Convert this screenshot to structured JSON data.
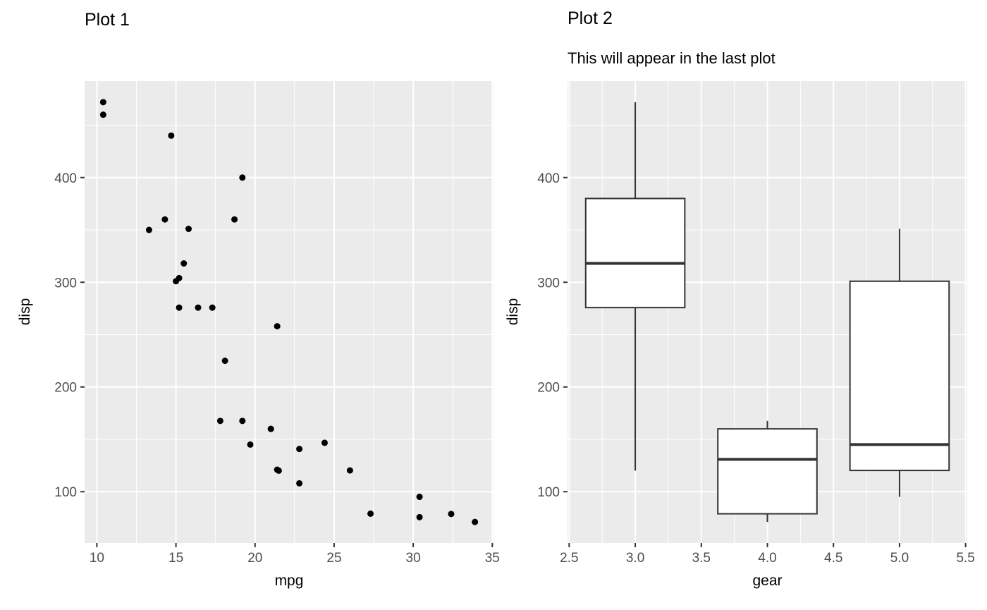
{
  "style": {
    "figure_background": "#FFFFFF",
    "panel_background": "#EBEBEB",
    "grid_color": "#FFFFFF",
    "point_color": "#000000",
    "box_fill": "#FFFFFF",
    "box_stroke": "#333333",
    "tick_color": "#333333",
    "tick_label_color": "#4D4D4D",
    "title_color": "#000000"
  },
  "chart_data": [
    {
      "type": "scatter",
      "title": "Plot 1",
      "subtitle": "",
      "xlabel": "mpg",
      "ylabel": "disp",
      "xlim": [
        9.225,
        35.075
      ],
      "ylim": [
        51.0,
        492.1
      ],
      "xtick_values": [
        10,
        15,
        20,
        25,
        30,
        35
      ],
      "xtick_labels": [
        "10",
        "15",
        "20",
        "25",
        "30",
        "35"
      ],
      "ytick_values": [
        100,
        200,
        300,
        400
      ],
      "ytick_labels": [
        "100",
        "200",
        "300",
        "400"
      ],
      "grid": true,
      "legend": "none",
      "points": [
        [
          21.0,
          160
        ],
        [
          21.0,
          160
        ],
        [
          22.8,
          108
        ],
        [
          21.4,
          258
        ],
        [
          18.7,
          360
        ],
        [
          18.1,
          225
        ],
        [
          14.3,
          360
        ],
        [
          24.4,
          146.7
        ],
        [
          22.8,
          140.8
        ],
        [
          19.2,
          167.6
        ],
        [
          17.8,
          167.6
        ],
        [
          16.4,
          275.8
        ],
        [
          17.3,
          275.8
        ],
        [
          15.2,
          275.8
        ],
        [
          10.4,
          472
        ],
        [
          10.4,
          460
        ],
        [
          14.7,
          440
        ],
        [
          32.4,
          78.7
        ],
        [
          30.4,
          75.7
        ],
        [
          33.9,
          71.1
        ],
        [
          21.5,
          120.1
        ],
        [
          15.5,
          318
        ],
        [
          15.2,
          304
        ],
        [
          13.3,
          350
        ],
        [
          19.2,
          400
        ],
        [
          27.3,
          79
        ],
        [
          26.0,
          120.3
        ],
        [
          30.4,
          95.1
        ],
        [
          15.8,
          351
        ],
        [
          19.7,
          145
        ],
        [
          15.0,
          301
        ],
        [
          21.4,
          121
        ]
      ]
    },
    {
      "type": "boxplot",
      "title": "Plot 2",
      "subtitle": "This will appear in the last plot",
      "xlabel": "gear",
      "ylabel": "disp",
      "xlim": [
        2.4875,
        5.5125
      ],
      "ylim": [
        51.0,
        492.1
      ],
      "xtick_values": [
        2.5,
        3.0,
        3.5,
        4.0,
        4.5,
        5.0,
        5.5
      ],
      "xtick_labels": [
        "2.5",
        "3.0",
        "3.5",
        "4.0",
        "4.5",
        "5.0",
        "5.5"
      ],
      "ytick_values": [
        100,
        200,
        300,
        400
      ],
      "ytick_labels": [
        "100",
        "200",
        "300",
        "400"
      ],
      "grid": true,
      "legend": "none",
      "box_width": 0.75,
      "boxes": [
        {
          "x": 3,
          "whisker_min": 120.1,
          "q1": 275.8,
          "median": 318.0,
          "q3": 380.0,
          "whisker_max": 472.0
        },
        {
          "x": 4,
          "whisker_min": 71.1,
          "q1": 78.9,
          "median": 130.9,
          "q3": 160.0,
          "whisker_max": 167.6
        },
        {
          "x": 5,
          "whisker_min": 95.1,
          "q1": 120.3,
          "median": 145.0,
          "q3": 301.0,
          "whisker_max": 351.0
        }
      ]
    }
  ]
}
